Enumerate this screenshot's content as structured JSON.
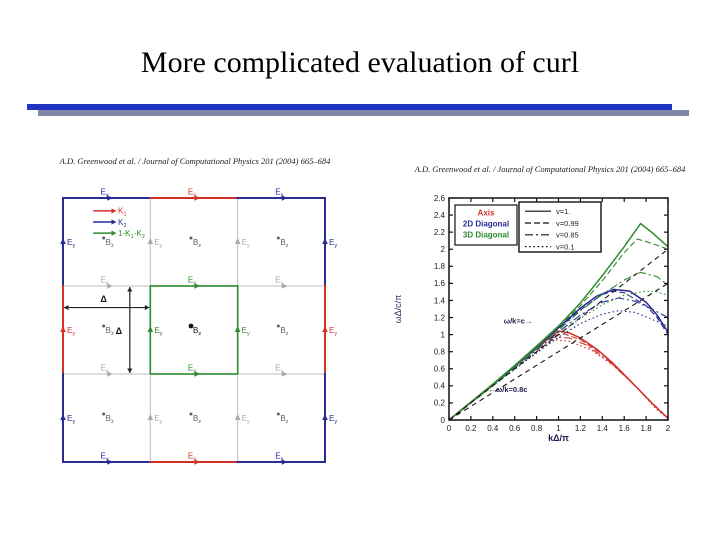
{
  "slide": {
    "title": "More complicated evaluation of curl",
    "colors": {
      "divider_blue": "#2134c4",
      "divider_shadow": "#8187a6"
    }
  },
  "left_figure": {
    "citation": "A.D. Greenwood et al. / Journal of Computational Physics 201 (2004) 665–684",
    "colors": {
      "blue": "#2b2b96",
      "red": "#d23329",
      "green": "#2e8b2e",
      "gray": "#a9a9a9",
      "dim": "#5a5a72",
      "black": "#111111",
      "grid": "#bcbcbc",
      "arrow": "#222222"
    },
    "delta_symbol": "Δ",
    "field_label_parts": {
      "ex": [
        [
          "E",
          "x"
        ]
      ],
      "ey": [
        [
          "E",
          "y"
        ]
      ],
      "bz": [
        [
          "B",
          "z"
        ]
      ]
    },
    "legend": [
      {
        "color": "red",
        "parts": [
          [
            "K",
            "1"
          ]
        ]
      },
      {
        "color": "blue",
        "parts": [
          [
            "K",
            "2"
          ]
        ]
      },
      {
        "color": "green",
        "parts": [
          [
            "1-K",
            "1"
          ],
          [
            "-K",
            "2"
          ]
        ]
      }
    ],
    "border_segments": [
      [
        0,
        0,
        0.3333,
        0,
        "blue"
      ],
      [
        0.3333,
        0,
        0.6667,
        0,
        "red"
      ],
      [
        0.6667,
        0,
        1,
        0,
        "blue"
      ],
      [
        0,
        1,
        0.3333,
        1,
        "blue"
      ],
      [
        0.3333,
        1,
        0.6667,
        1,
        "red"
      ],
      [
        0.6667,
        1,
        1,
        1,
        "blue"
      ],
      [
        0,
        0,
        0,
        0.3333,
        "blue"
      ],
      [
        0,
        0.3333,
        0,
        0.6667,
        "red"
      ],
      [
        0,
        0.6667,
        0,
        1,
        "blue"
      ],
      [
        1,
        0,
        1,
        0.3333,
        "blue"
      ],
      [
        1,
        0.3333,
        1,
        0.6667,
        "red"
      ],
      [
        1,
        0.6667,
        1,
        1,
        "blue"
      ]
    ],
    "grid_lines": [
      [
        0.3333,
        0,
        0.3333,
        1
      ],
      [
        0.6667,
        0,
        0.6667,
        1
      ],
      [
        0,
        0.3333,
        1,
        0.3333
      ],
      [
        0,
        0.6667,
        1,
        0.6667
      ]
    ],
    "highlight_cell": [
      0.3333,
      0.3333,
      0.6667,
      0.6667
    ],
    "ex_labels": [
      [
        0.1667,
        0,
        "blue"
      ],
      [
        0.5,
        0,
        "red"
      ],
      [
        0.8333,
        0,
        "blue"
      ],
      [
        0.1667,
        0.3333,
        "gray"
      ],
      [
        0.5,
        0.3333,
        "green"
      ],
      [
        0.8333,
        0.3333,
        "gray"
      ],
      [
        0.1667,
        0.6667,
        "gray"
      ],
      [
        0.5,
        0.6667,
        "green"
      ],
      [
        0.8333,
        0.6667,
        "gray"
      ],
      [
        0.1667,
        1,
        "blue"
      ],
      [
        0.5,
        1,
        "red"
      ],
      [
        0.8333,
        1,
        "blue"
      ]
    ],
    "ey_labels": [
      [
        0,
        0.1667,
        "blue"
      ],
      [
        0,
        0.5,
        "red"
      ],
      [
        0,
        0.8333,
        "blue"
      ],
      [
        0.3333,
        0.1667,
        "gray"
      ],
      [
        0.3333,
        0.5,
        "green"
      ],
      [
        0.3333,
        0.8333,
        "gray"
      ],
      [
        0.6667,
        0.1667,
        "gray"
      ],
      [
        0.6667,
        0.5,
        "green"
      ],
      [
        0.6667,
        0.8333,
        "gray"
      ],
      [
        1,
        0.1667,
        "blue"
      ],
      [
        1,
        0.5,
        "red"
      ],
      [
        1,
        0.8333,
        "blue"
      ]
    ],
    "bz_labels": [
      [
        0.1667,
        0.1667,
        "dim"
      ],
      [
        0.5,
        0.1667,
        "dim"
      ],
      [
        0.8333,
        0.1667,
        "dim"
      ],
      [
        0.1667,
        0.5,
        "dim"
      ],
      [
        0.5,
        0.5,
        "black"
      ],
      [
        0.8333,
        0.5,
        "dim"
      ],
      [
        0.1667,
        0.8333,
        "dim"
      ],
      [
        0.5,
        0.8333,
        "dim"
      ],
      [
        0.8333,
        0.8333,
        "dim"
      ]
    ],
    "dim_arrows": {
      "horizontal": {
        "from": [
          0,
          0.415
        ],
        "to": [
          0.3333,
          0.415
        ],
        "label_at": [
          0.155,
          0.393
        ]
      },
      "vertical": {
        "at": 0.255,
        "from": 0.3333,
        "to": 0.6667,
        "label_at": [
          0.213,
          0.515
        ]
      }
    }
  },
  "right_figure": {
    "citation": "A.D. Greenwood et al. / Journal of Computational Physics 201 (2004) 665–684"
  },
  "chart_data": {
    "type": "line",
    "xlabel": "kΔ/π",
    "ylabel": "ωΔ/c/π",
    "xlim": [
      0,
      2
    ],
    "ylim": [
      0,
      2.6
    ],
    "xtick_labels": [
      "0",
      "0.2",
      "0.4",
      "0.6",
      "0.8",
      "1",
      "1.2",
      "1.4",
      "1.6",
      "1.8",
      "2"
    ],
    "ytick_labels": [
      "0",
      "0.2",
      "0.4",
      "0.6",
      "0.8",
      "1",
      "1.2",
      "1.4",
      "1.6",
      "1.8",
      "2",
      "2.2",
      "2.4",
      "2.6"
    ],
    "legend_colors": [
      {
        "label": "Axis",
        "color": "#d23329"
      },
      {
        "label": "2D Diagonal",
        "color": "#2b2b96"
      },
      {
        "label": "3D Diagonal",
        "color": "#2e8b2e"
      }
    ],
    "legend_styles": [
      {
        "label": "v=1.",
        "dash": "solid"
      },
      {
        "label": "v=0.99",
        "dash": "dash"
      },
      {
        "label": "v=0.85",
        "dash": "dashdot"
      },
      {
        "label": "v=0.1",
        "dash": "dot"
      }
    ],
    "series": [
      {
        "name": "Axis v=1.",
        "color": "#d23329",
        "dash": "solid",
        "points": [
          [
            0,
            0
          ],
          [
            0.2,
            0.21
          ],
          [
            0.4,
            0.415
          ],
          [
            0.6,
            0.625
          ],
          [
            0.8,
            0.845
          ],
          [
            0.9,
            0.95
          ],
          [
            1.0,
            1.04
          ],
          [
            1.1,
            1.02
          ],
          [
            1.2,
            0.96
          ],
          [
            1.35,
            0.83
          ],
          [
            1.5,
            0.66
          ],
          [
            1.7,
            0.4
          ],
          [
            1.85,
            0.2
          ],
          [
            2,
            0.02
          ]
        ]
      },
      {
        "name": "Axis v=0.99",
        "color": "#d23329",
        "dash": "dash",
        "points": [
          [
            0,
            0
          ],
          [
            0.4,
            0.41
          ],
          [
            0.8,
            0.835
          ],
          [
            0.95,
            0.99
          ],
          [
            1.05,
            1.01
          ],
          [
            1.2,
            0.94
          ],
          [
            1.4,
            0.77
          ],
          [
            1.6,
            0.53
          ],
          [
            1.8,
            0.27
          ],
          [
            2,
            0.02
          ]
        ]
      },
      {
        "name": "Axis v=0.85",
        "color": "#d23329",
        "dash": "dashdot",
        "points": [
          [
            0,
            0
          ],
          [
            0.4,
            0.405
          ],
          [
            0.8,
            0.82
          ],
          [
            0.95,
            0.97
          ],
          [
            1.1,
            0.96
          ],
          [
            1.25,
            0.88
          ],
          [
            1.45,
            0.7
          ],
          [
            1.65,
            0.46
          ],
          [
            1.85,
            0.2
          ],
          [
            2,
            0.02
          ]
        ]
      },
      {
        "name": "Axis v=0.1",
        "color": "#d23329",
        "dash": "dot",
        "points": [
          [
            0,
            0
          ],
          [
            0.4,
            0.4
          ],
          [
            0.8,
            0.8
          ],
          [
            0.95,
            0.94
          ],
          [
            1.1,
            0.92
          ],
          [
            1.3,
            0.82
          ],
          [
            1.5,
            0.64
          ],
          [
            1.7,
            0.4
          ],
          [
            1.9,
            0.12
          ],
          [
            2,
            0.02
          ]
        ]
      },
      {
        "name": "2D Diagonal v=1.",
        "color": "#2b2b96",
        "dash": "solid",
        "points": [
          [
            0,
            0
          ],
          [
            0.2,
            0.205
          ],
          [
            0.4,
            0.413
          ],
          [
            0.6,
            0.628
          ],
          [
            0.8,
            0.85
          ],
          [
            1.0,
            1.08
          ],
          [
            1.2,
            1.31
          ],
          [
            1.35,
            1.45
          ],
          [
            1.5,
            1.53
          ],
          [
            1.65,
            1.51
          ],
          [
            1.8,
            1.38
          ],
          [
            1.9,
            1.23
          ],
          [
            2,
            1.03
          ]
        ]
      },
      {
        "name": "2D Diagonal v=0.99",
        "color": "#2b2b96",
        "dash": "dash",
        "points": [
          [
            0,
            0
          ],
          [
            0.4,
            0.41
          ],
          [
            0.8,
            0.845
          ],
          [
            1.0,
            1.07
          ],
          [
            1.2,
            1.29
          ],
          [
            1.4,
            1.47
          ],
          [
            1.5,
            1.51
          ],
          [
            1.6,
            1.49
          ],
          [
            1.8,
            1.34
          ],
          [
            1.9,
            1.2
          ],
          [
            2,
            1.0
          ]
        ]
      },
      {
        "name": "2D Diagonal v=0.85",
        "color": "#2b2b96",
        "dash": "dashdot",
        "points": [
          [
            0,
            0
          ],
          [
            0.4,
            0.405
          ],
          [
            0.8,
            0.825
          ],
          [
            1.0,
            1.03
          ],
          [
            1.2,
            1.23
          ],
          [
            1.4,
            1.38
          ],
          [
            1.55,
            1.43
          ],
          [
            1.7,
            1.39
          ],
          [
            1.85,
            1.3
          ],
          [
            2,
            1.2
          ]
        ]
      },
      {
        "name": "2D Diagonal v=0.1",
        "color": "#2b2b96",
        "dash": "dot",
        "points": [
          [
            0,
            0
          ],
          [
            0.4,
            0.4
          ],
          [
            0.8,
            0.785
          ],
          [
            1.0,
            0.97
          ],
          [
            1.2,
            1.13
          ],
          [
            1.4,
            1.24
          ],
          [
            1.55,
            1.28
          ],
          [
            1.7,
            1.26
          ],
          [
            1.85,
            1.18
          ],
          [
            2,
            1.1
          ]
        ]
      },
      {
        "name": "3D Diagonal v=1.",
        "color": "#2e8b2e",
        "dash": "solid",
        "points": [
          [
            0,
            0
          ],
          [
            0.2,
            0.21
          ],
          [
            0.4,
            0.42
          ],
          [
            0.6,
            0.64
          ],
          [
            0.8,
            0.865
          ],
          [
            1.0,
            1.1
          ],
          [
            1.2,
            1.37
          ],
          [
            1.4,
            1.69
          ],
          [
            1.6,
            2.03
          ],
          [
            1.75,
            2.3
          ],
          [
            1.85,
            2.2
          ],
          [
            2,
            2.03
          ]
        ]
      },
      {
        "name": "3D Diagonal v=0.99",
        "color": "#2e8b2e",
        "dash": "dash",
        "points": [
          [
            0,
            0
          ],
          [
            0.4,
            0.417
          ],
          [
            0.8,
            0.857
          ],
          [
            1.0,
            1.09
          ],
          [
            1.2,
            1.34
          ],
          [
            1.4,
            1.63
          ],
          [
            1.6,
            1.96
          ],
          [
            1.72,
            2.12
          ],
          [
            1.85,
            2.07
          ],
          [
            2,
            2.0
          ]
        ]
      },
      {
        "name": "3D Diagonal v=0.85",
        "color": "#2e8b2e",
        "dash": "dashdot",
        "points": [
          [
            0,
            0
          ],
          [
            0.4,
            0.41
          ],
          [
            0.8,
            0.835
          ],
          [
            1.0,
            1.05
          ],
          [
            1.2,
            1.28
          ],
          [
            1.4,
            1.47
          ],
          [
            1.6,
            1.64
          ],
          [
            1.75,
            1.73
          ],
          [
            1.9,
            1.68
          ],
          [
            2,
            1.58
          ]
        ]
      },
      {
        "name": "3D Diagonal v=0.1",
        "color": "#2e8b2e",
        "dash": "dot",
        "points": [
          [
            0,
            0
          ],
          [
            0.4,
            0.4
          ],
          [
            0.8,
            0.8
          ],
          [
            1.0,
            1.0
          ],
          [
            1.2,
            1.19
          ],
          [
            1.4,
            1.35
          ],
          [
            1.6,
            1.46
          ],
          [
            1.8,
            1.51
          ],
          [
            1.9,
            1.5
          ],
          [
            2,
            1.46
          ]
        ]
      }
    ],
    "reference_lines": [
      {
        "label": "ω/k=c",
        "points": [
          [
            0,
            0
          ],
          [
            2,
            2
          ]
        ]
      },
      {
        "label": "ω/k=0.8c",
        "points": [
          [
            0,
            0
          ],
          [
            2,
            1.6
          ]
        ]
      }
    ],
    "annotations": [
      {
        "text": "ω/k=c→",
        "x": 0.5,
        "y": 1.13
      },
      {
        "text": "←ω/k=0.8c",
        "x": 0.36,
        "y": 0.33
      }
    ]
  }
}
